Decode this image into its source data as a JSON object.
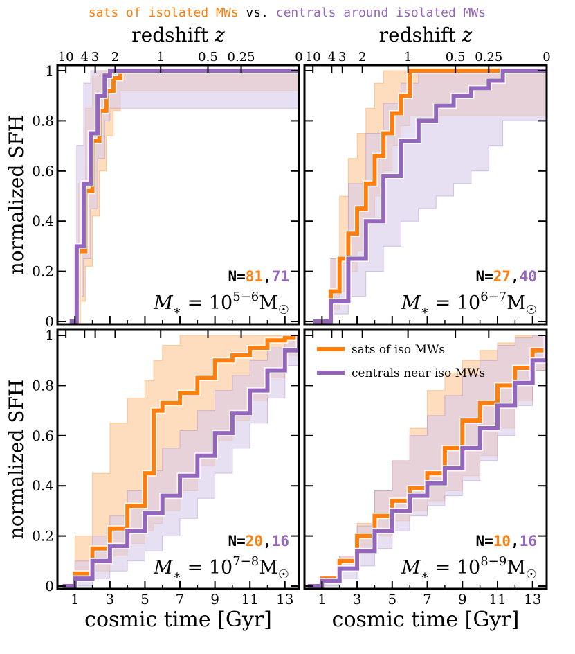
{
  "title": {
    "left": "sats of isolated MWs",
    "mid": " vs. ",
    "right": "centrals around isolated MWs"
  },
  "colors": {
    "sats": "#ff7f0e",
    "centrals": "#9467bd",
    "sats_band": "#fdd0a8",
    "centrals_band": "#d6cbe9"
  },
  "legend": {
    "sats": "sats of iso MWs",
    "centrals": "centrals near iso MWs"
  },
  "chart_data": [
    {
      "type": "line",
      "panel": "top-left",
      "mass_label": "M* = 10^{5−6} M☉",
      "mass_exp": "5−6",
      "n_sats": "81",
      "n_centrals": "71",
      "top_axis_label": "redshift z",
      "top_ticks": [
        "10",
        "4",
        "3",
        "2",
        "1",
        "0.5",
        "0.25",
        "0"
      ],
      "top_tick_times": [
        0.48,
        1.55,
        2.16,
        3.3,
        5.9,
        8.6,
        10.5,
        13.8
      ],
      "ylabel": "normalized SFH",
      "xlabel": "",
      "yticks": [
        "0",
        "0.2",
        "0.4",
        "0.6",
        "0.8",
        "1"
      ],
      "xlim": [
        0,
        13.8
      ],
      "ylim": [
        0,
        1
      ],
      "series": [
        {
          "name": "sats of iso MWs",
          "x": [
            0.8,
            1.2,
            1.6,
            2.0,
            2.4,
            2.8,
            3.2,
            3.6,
            13.8
          ],
          "median": [
            0.0,
            0.28,
            0.52,
            0.72,
            0.84,
            0.92,
            0.97,
            1.0,
            1.0
          ],
          "lower": [
            0.0,
            0.08,
            0.22,
            0.42,
            0.6,
            0.74,
            0.84,
            0.92,
            1.0
          ],
          "upper": [
            0.0,
            0.55,
            0.85,
            0.98,
            1.0,
            1.0,
            1.0,
            1.0,
            1.0
          ]
        },
        {
          "name": "centrals near iso MWs",
          "x": [
            0.7,
            1.1,
            1.5,
            1.9,
            2.3,
            2.7,
            3.0,
            13.8
          ],
          "median": [
            0.0,
            0.3,
            0.55,
            0.75,
            0.9,
            0.98,
            1.0,
            1.0
          ],
          "lower": [
            0.0,
            0.1,
            0.25,
            0.45,
            0.65,
            0.8,
            0.85,
            1.0
          ],
          "upper": [
            0.0,
            0.7,
            0.95,
            1.0,
            1.0,
            1.0,
            1.0,
            1.0
          ]
        }
      ]
    },
    {
      "type": "line",
      "panel": "top-right",
      "mass_label": "M* = 10^{6−7} M☉",
      "mass_exp": "6−7",
      "n_sats": "27",
      "n_centrals": "40",
      "top_axis_label": "redshift z",
      "top_ticks": [
        "10",
        "4",
        "3",
        "2",
        "1",
        "0.5",
        "0.25",
        "0"
      ],
      "top_tick_times": [
        0.48,
        1.55,
        2.16,
        3.3,
        5.9,
        8.6,
        10.5,
        13.8
      ],
      "ylabel": "",
      "xlabel": "",
      "yticks": [],
      "xlim": [
        0,
        13.8
      ],
      "ylim": [
        0,
        1
      ],
      "series": [
        {
          "name": "sats of iso MWs",
          "x": [
            0.9,
            1.5,
            2.0,
            2.5,
            3.0,
            3.5,
            4.0,
            4.5,
            5.0,
            5.5,
            6.0,
            13.8
          ],
          "median": [
            0.0,
            0.12,
            0.25,
            0.35,
            0.45,
            0.55,
            0.66,
            0.75,
            0.83,
            0.9,
            1.0,
            1.0
          ],
          "lower": [
            0.0,
            0.05,
            0.12,
            0.2,
            0.28,
            0.4,
            0.5,
            0.6,
            0.7,
            0.78,
            0.82,
            1.0
          ],
          "upper": [
            0.0,
            0.25,
            0.5,
            0.65,
            0.75,
            0.85,
            0.95,
            1.0,
            1.0,
            1.0,
            1.0,
            1.0
          ]
        },
        {
          "name": "centrals near iso MWs",
          "x": [
            0.5,
            1.5,
            2.5,
            3.5,
            4.5,
            5.5,
            6.5,
            7.5,
            8.5,
            9.5,
            10.5,
            11.3,
            13.8
          ],
          "median": [
            0.0,
            0.08,
            0.25,
            0.4,
            0.58,
            0.72,
            0.8,
            0.86,
            0.9,
            0.93,
            0.96,
            1.0,
            1.0
          ],
          "lower": [
            0.0,
            0.03,
            0.1,
            0.2,
            0.3,
            0.4,
            0.45,
            0.5,
            0.55,
            0.6,
            0.7,
            0.8,
            1.0
          ],
          "upper": [
            0.0,
            0.25,
            0.55,
            0.75,
            0.87,
            0.95,
            1.0,
            1.0,
            1.0,
            1.0,
            1.0,
            1.0,
            1.0
          ]
        }
      ]
    },
    {
      "type": "line",
      "panel": "bottom-left",
      "mass_label": "M* = 10^{7−8} M☉",
      "mass_exp": "7−8",
      "n_sats": "20",
      "n_centrals": "16",
      "top_axis_label": "",
      "top_ticks": [],
      "top_tick_times": [
        0.48,
        1.55,
        2.16,
        3.3,
        5.9,
        8.6,
        10.5,
        13.8
      ],
      "ylabel": "normalized SFH",
      "xlabel": "cosmic time [Gyr]",
      "xticks": [
        "1",
        "3",
        "5",
        "7",
        "9",
        "11",
        "13"
      ],
      "yticks": [
        "0",
        "0.2",
        "0.4",
        "0.6",
        "0.8",
        "1"
      ],
      "xlim": [
        0,
        13.8
      ],
      "ylim": [
        0,
        1
      ],
      "series": [
        {
          "name": "sats of iso MWs",
          "x": [
            0.3,
            1,
            2,
            3,
            4,
            5,
            5.5,
            6,
            7,
            8,
            9,
            10,
            11,
            12,
            13,
            13.8
          ],
          "median": [
            0.0,
            0.05,
            0.15,
            0.23,
            0.32,
            0.45,
            0.7,
            0.73,
            0.77,
            0.83,
            0.9,
            0.92,
            0.95,
            0.98,
            0.99,
            1.0
          ],
          "lower": [
            0.0,
            0.02,
            0.06,
            0.12,
            0.17,
            0.22,
            0.25,
            0.3,
            0.38,
            0.48,
            0.58,
            0.66,
            0.74,
            0.83,
            0.92,
            1.0
          ],
          "upper": [
            0.0,
            0.2,
            0.45,
            0.65,
            0.75,
            0.82,
            0.9,
            0.96,
            1.0,
            1.0,
            1.0,
            1.0,
            1.0,
            1.0,
            1.0,
            1.0
          ]
        },
        {
          "name": "centrals near iso MWs",
          "x": [
            0.3,
            1,
            2,
            3,
            4,
            5,
            6,
            7,
            8,
            9,
            10,
            11,
            12,
            13,
            13.8
          ],
          "median": [
            0.0,
            0.03,
            0.1,
            0.16,
            0.22,
            0.29,
            0.36,
            0.44,
            0.52,
            0.61,
            0.69,
            0.78,
            0.86,
            0.94,
            1.0
          ],
          "lower": [
            0.0,
            0.0,
            0.03,
            0.06,
            0.1,
            0.14,
            0.2,
            0.27,
            0.35,
            0.45,
            0.55,
            0.65,
            0.75,
            0.88,
            1.0
          ],
          "upper": [
            0.0,
            0.1,
            0.2,
            0.28,
            0.38,
            0.46,
            0.55,
            0.62,
            0.7,
            0.78,
            0.84,
            0.9,
            0.95,
            0.99,
            1.0
          ]
        }
      ]
    },
    {
      "type": "line",
      "panel": "bottom-right",
      "mass_label": "M* = 10^{8−9} M☉",
      "mass_exp": "8−9",
      "n_sats": "10",
      "n_centrals": "16",
      "top_axis_label": "",
      "top_ticks": [],
      "top_tick_times": [
        0.48,
        1.55,
        2.16,
        3.3,
        5.9,
        8.6,
        10.5,
        13.8
      ],
      "ylabel": "",
      "xlabel": "cosmic time [Gyr]",
      "xticks": [
        "1",
        "3",
        "5",
        "7",
        "9",
        "11",
        "13"
      ],
      "yticks": [],
      "xlim": [
        0,
        13.8
      ],
      "ylim": [
        0,
        1
      ],
      "series": [
        {
          "name": "sats of iso MWs",
          "x": [
            0.2,
            1,
            2,
            3,
            4,
            5,
            6,
            7,
            8,
            9,
            10,
            11,
            12,
            13,
            13.8
          ],
          "median": [
            0.0,
            0.03,
            0.1,
            0.2,
            0.28,
            0.34,
            0.39,
            0.45,
            0.55,
            0.66,
            0.73,
            0.8,
            0.87,
            0.94,
            1.0
          ],
          "lower": [
            0.0,
            0.01,
            0.06,
            0.13,
            0.2,
            0.26,
            0.3,
            0.34,
            0.38,
            0.44,
            0.52,
            0.63,
            0.74,
            0.86,
            1.0
          ],
          "upper": [
            0.0,
            0.04,
            0.12,
            0.25,
            0.38,
            0.5,
            0.63,
            0.78,
            0.85,
            0.9,
            0.94,
            0.97,
            1.0,
            1.0,
            1.0
          ]
        },
        {
          "name": "centrals near iso MWs",
          "x": [
            0.2,
            1,
            2,
            3,
            4,
            5,
            6,
            7,
            8,
            9,
            10,
            11,
            12,
            13,
            13.8
          ],
          "median": [
            0.0,
            0.02,
            0.07,
            0.14,
            0.22,
            0.3,
            0.36,
            0.41,
            0.47,
            0.55,
            0.63,
            0.72,
            0.81,
            0.9,
            1.0
          ],
          "lower": [
            0.0,
            0.0,
            0.03,
            0.08,
            0.15,
            0.22,
            0.28,
            0.32,
            0.36,
            0.42,
            0.5,
            0.6,
            0.72,
            0.86,
            1.0
          ],
          "upper": [
            0.0,
            0.04,
            0.12,
            0.24,
            0.38,
            0.5,
            0.6,
            0.68,
            0.76,
            0.84,
            0.9,
            0.96,
            0.99,
            1.0,
            1.0
          ]
        }
      ]
    }
  ]
}
